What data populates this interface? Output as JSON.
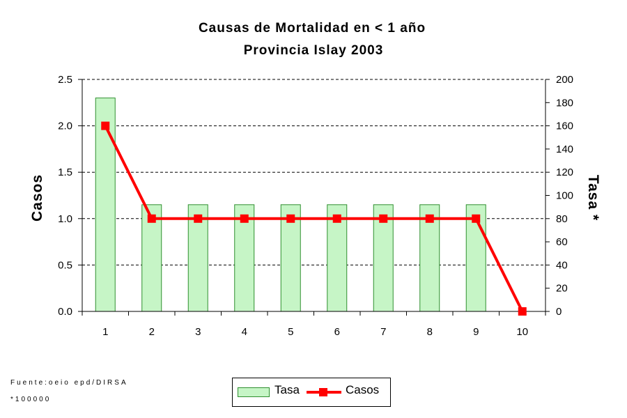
{
  "chart_data": {
    "type": "bar+line",
    "title": "Causas de Mortalidad en < 1 año",
    "subtitle": "Provincia Islay 2003",
    "categories": [
      "1",
      "2",
      "3",
      "4",
      "5",
      "6",
      "7",
      "8",
      "9",
      "10"
    ],
    "series": [
      {
        "name": "Tasa",
        "type": "bar",
        "axis": "right",
        "values": [
          184,
          92,
          92,
          92,
          92,
          92,
          92,
          92,
          92,
          0
        ],
        "color": "#c6f5c6",
        "border": "#2f8f2f"
      },
      {
        "name": "Casos",
        "type": "line",
        "axis": "left",
        "values": [
          2,
          1,
          1,
          1,
          1,
          1,
          1,
          1,
          1,
          0
        ],
        "color": "#ff0000"
      }
    ],
    "ylabel_left": "Casos",
    "ylabel_right": "Tasa *",
    "ylim_left": [
      0,
      2.5
    ],
    "ylim_right": [
      0,
      200
    ],
    "yticks_left": [
      "0.0",
      "0.5",
      "1.0",
      "1.5",
      "2.0",
      "2.5"
    ],
    "yticks_right": [
      "0",
      "20",
      "40",
      "60",
      "80",
      "100",
      "120",
      "140",
      "160",
      "180",
      "200"
    ],
    "grid": "horizontal dashed",
    "legend_position": "bottom-center"
  },
  "footnotes": {
    "source": "Fuente:oeio epd/DIRSA",
    "note": "*100000"
  }
}
